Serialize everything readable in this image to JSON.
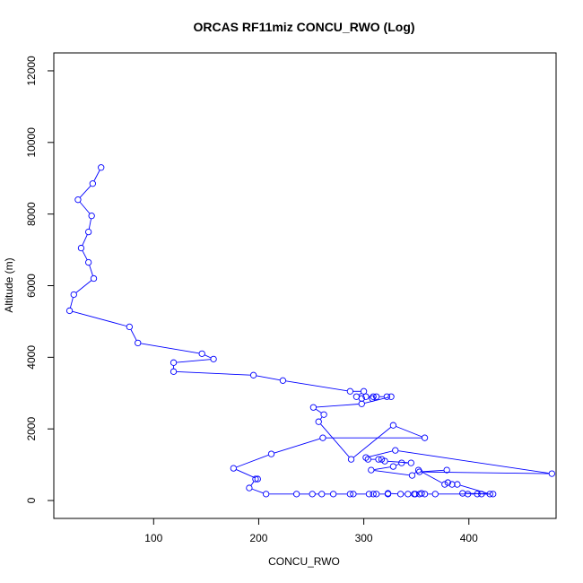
{
  "chart_data": {
    "type": "line",
    "title": "ORCAS RF11miz CONCU_RWO (Log)",
    "xlabel": "CONCU_RWO",
    "ylabel": "Altitude (m)",
    "xlim": [
      5,
      483
    ],
    "ylim": [
      -500,
      12500
    ],
    "xticks": [
      100,
      200,
      300,
      400
    ],
    "yticks": [
      0,
      2000,
      4000,
      6000,
      8000,
      10000,
      12000
    ],
    "line_color": "#0000ff",
    "marker": "open-circle",
    "grid": false,
    "x": [
      50,
      42,
      28,
      41,
      38,
      31,
      38,
      43,
      24,
      20,
      77,
      85,
      146,
      157,
      119,
      119,
      195,
      223,
      287,
      300,
      293,
      298,
      302,
      309,
      308,
      312,
      322,
      326,
      298,
      252,
      262,
      257,
      288,
      328,
      358,
      261,
      212,
      176,
      199,
      197,
      191,
      207,
      236,
      251,
      260,
      271,
      287,
      290,
      305,
      309,
      312,
      323,
      323,
      335,
      342,
      348,
      349,
      353,
      355,
      358,
      368,
      399,
      408,
      412,
      423,
      394,
      420,
      389,
      384,
      380,
      377,
      352,
      346,
      307,
      328,
      336,
      345,
      320,
      317,
      314,
      304,
      302,
      330,
      479,
      353,
      379
    ],
    "y": [
      9300,
      8850,
      8400,
      7950,
      7500,
      7050,
      6650,
      6200,
      5750,
      5300,
      4850,
      4400,
      4100,
      3950,
      3850,
      3600,
      3500,
      3350,
      3050,
      3050,
      2900,
      2850,
      2900,
      2900,
      2850,
      2900,
      2900,
      2900,
      2700,
      2600,
      2400,
      2200,
      1150,
      2100,
      1750,
      1750,
      1300,
      900,
      600,
      600,
      350,
      180,
      180,
      180,
      180,
      180,
      180,
      180,
      180,
      180,
      180,
      180,
      200,
      180,
      180,
      180,
      180,
      180,
      200,
      180,
      180,
      180,
      180,
      180,
      180,
      200,
      180,
      450,
      450,
      500,
      450,
      850,
      700,
      850,
      950,
      1050,
      1050,
      1100,
      1150,
      1150,
      1150,
      1200,
      1400,
      750,
      800,
      850
    ]
  }
}
